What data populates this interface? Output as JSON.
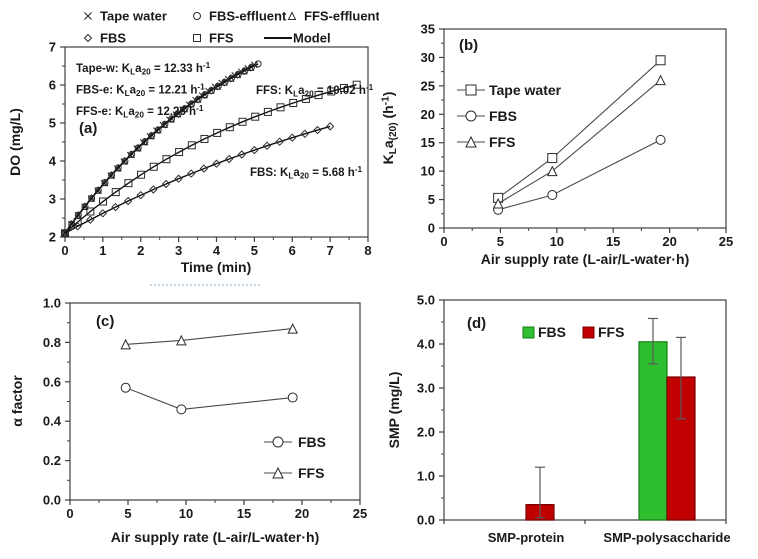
{
  "figure_background": "#ffffff",
  "chart_data": [
    {
      "id": "a",
      "type": "scatter-line",
      "panel_label": "(a)",
      "xlabel": "Time (min)",
      "ylabel": "DO (mg/L)",
      "xlim": [
        0,
        8
      ],
      "ylim": [
        2,
        7
      ],
      "xticks": [
        0,
        1,
        2,
        3,
        4,
        5,
        6,
        7,
        8
      ],
      "yticks": [
        2,
        3,
        4,
        5,
        6,
        7
      ],
      "x_minor_step": 0.5,
      "y_minor_step": 0.5,
      "legend": [
        {
          "marker": "cross",
          "label": "Tape water"
        },
        {
          "marker": "circle",
          "label": "FBS-effluent"
        },
        {
          "marker": "triangle",
          "label": "FFS-effluent"
        },
        {
          "marker": "diamond",
          "label": "FBS"
        },
        {
          "marker": "square",
          "label": "FFS"
        },
        {
          "marker": "line",
          "label": "Model"
        }
      ],
      "series": [
        {
          "name": "Tape water",
          "marker": "cross",
          "model": {
            "do0": 2.1,
            "dosat": 9.0,
            "kla_h": 12.33
          },
          "t_end": 5.0,
          "n_points": 30
        },
        {
          "name": "FFS-effluent",
          "marker": "triangle",
          "model": {
            "do0": 2.1,
            "dosat": 9.0,
            "kla_h": 12.26
          },
          "t_end": 4.9,
          "n_points": 29
        },
        {
          "name": "FBS-effluent",
          "marker": "circle",
          "model": {
            "do0": 2.1,
            "dosat": 9.0,
            "kla_h": 12.21
          },
          "t_end": 5.1,
          "n_points": 30
        },
        {
          "name": "FFS",
          "marker": "square",
          "model": {
            "do0": 2.1,
            "dosat": 7.5,
            "kla_h": 10.02
          },
          "t_end": 7.7,
          "n_points": 24
        },
        {
          "name": "FBS",
          "marker": "diamond",
          "model": {
            "do0": 2.1,
            "dosat": 7.9,
            "kla_h": 5.68
          },
          "t_end": 7.0,
          "n_points": 22
        }
      ],
      "annotations": [
        "Tape-w: K{sub:L}a{sub:20} = 12.33 h{sup:-1}",
        "FBS-e: K{sub:L}a{sub:20} = 12.21 h{sup:-1}",
        "FFS-e: K{sub:L}a{sub:20} = 12.26 h{sup:-1}",
        "FFS: K{sub:L}a{sub:20} = 10.02 h{sup:-1}",
        "FBS: K{sub:L}a{sub:20} = 5.68 h{sup:-1}"
      ]
    },
    {
      "id": "b",
      "type": "scatter-line",
      "panel_label": "(b)",
      "xlabel": "Air supply rate (L-air/L-water·h)",
      "ylabel": "K{sub:L}a{sub:(20)} (h{sup:-1})",
      "xlim": [
        0,
        25
      ],
      "ylim": [
        0,
        35
      ],
      "xticks": [
        0,
        5,
        10,
        15,
        20,
        25
      ],
      "yticks": [
        0,
        5,
        10,
        15,
        20,
        25,
        30,
        35
      ],
      "x_minor_step": 2.5,
      "y_minor_step": 2.5,
      "x": [
        4.8,
        9.6,
        19.2
      ],
      "series": [
        {
          "name": "Tape water",
          "marker": "square",
          "y": [
            5.3,
            12.3,
            29.5
          ]
        },
        {
          "name": "FBS",
          "marker": "circle",
          "y": [
            3.2,
            5.8,
            15.5
          ]
        },
        {
          "name": "FFS",
          "marker": "triangle",
          "y": [
            4.3,
            10.0,
            26.0
          ]
        }
      ]
    },
    {
      "id": "c",
      "type": "scatter-line",
      "panel_label": "(c)",
      "xlabel": "Air supply rate (L-air/L-water·h)",
      "ylabel": "α factor",
      "xlim": [
        0,
        25
      ],
      "ylim": [
        0,
        1
      ],
      "xticks": [
        0,
        5,
        10,
        15,
        20,
        25
      ],
      "yticks": [
        0,
        0.2,
        0.4,
        0.6,
        0.8,
        1.0
      ],
      "ytick_labels": [
        "0.0",
        "0.2",
        "0.4",
        "0.6",
        "0.8",
        "1.0"
      ],
      "x_minor_step": 2.5,
      "y_minor_step": 0.1,
      "x": [
        4.8,
        9.6,
        19.2
      ],
      "series": [
        {
          "name": "FBS",
          "marker": "circle",
          "y": [
            0.57,
            0.46,
            0.52
          ]
        },
        {
          "name": "FFS",
          "marker": "triangle",
          "y": [
            0.79,
            0.81,
            0.87
          ]
        }
      ]
    },
    {
      "id": "d",
      "type": "bar",
      "panel_label": "(d)",
      "ylabel": "SMP (mg/L)",
      "ylim": [
        0,
        5
      ],
      "yticks": [
        0,
        1,
        2,
        3,
        4,
        5
      ],
      "ytick_labels": [
        "0.0",
        "1.0",
        "2.0",
        "3.0",
        "4.0",
        "5.0"
      ],
      "y_minor_step": 0.5,
      "categories": [
        "SMP-protein",
        "SMP-polysaccharide"
      ],
      "series": [
        {
          "name": "FBS",
          "color": "#2fbe2f",
          "border": "#157f15",
          "values": [
            0,
            4.05
          ],
          "err_lo": [
            0,
            3.55
          ],
          "err_hi": [
            0,
            4.58
          ]
        },
        {
          "name": "FFS",
          "color": "#c00000",
          "border": "#7c0000",
          "values": [
            0.35,
            3.25
          ],
          "err_lo": [
            0.05,
            2.3
          ],
          "err_hi": [
            1.2,
            4.15
          ]
        }
      ]
    }
  ]
}
